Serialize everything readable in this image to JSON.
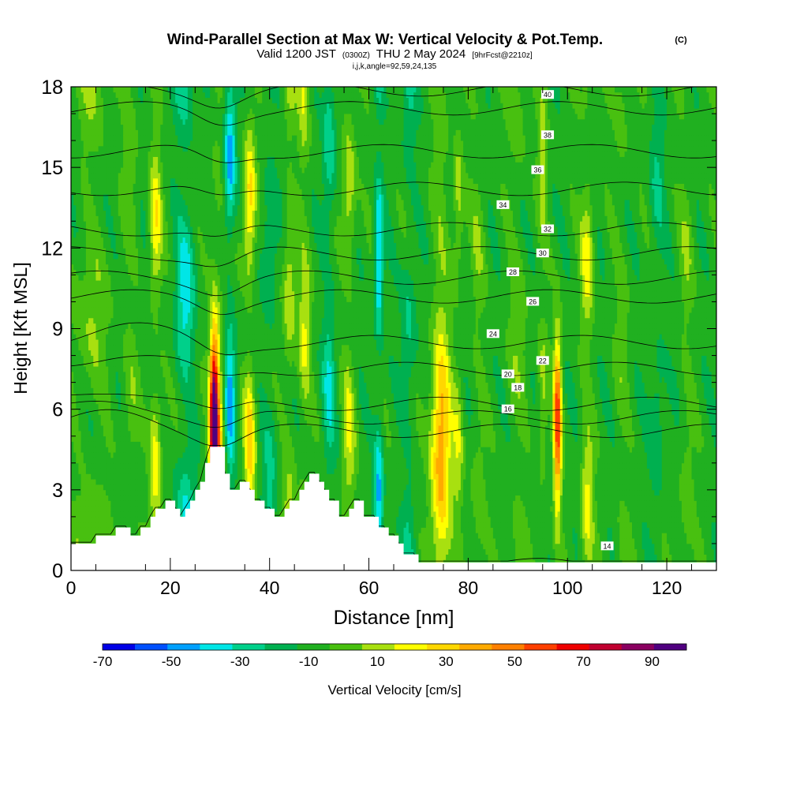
{
  "chart_data": {
    "type": "heatmap",
    "title": "Wind-Parallel Section at Max W: Vertical Velocity & Pot.Temp.",
    "title_mark": "(C)",
    "subtitle_prefix": "Valid 1200 JST",
    "subtitle_utc": "(0300Z)",
    "subtitle_date": "THU 2 May 2024",
    "subtitle_fcst": "[9hrFcst@2210z]",
    "subtitle2": "i,j,k,angle=92,59,24,135",
    "xlabel": "Distance [nm]",
    "ylabel": "Height [Kft MSL]",
    "xlim": [
      0,
      130
    ],
    "ylim": [
      0,
      18
    ],
    "x_ticks": [
      "0",
      "20",
      "40",
      "60",
      "80",
      "100",
      "120"
    ],
    "y_ticks": [
      "0",
      "3",
      "6",
      "9",
      "12",
      "15",
      "18"
    ],
    "colorbar": {
      "label": "Vertical Velocity [cm/s]",
      "tick_labels": [
        "-70",
        "-50",
        "-30",
        "-10",
        "10",
        "30",
        "50",
        "70",
        "90"
      ],
      "levels": [
        -70,
        -60,
        -50,
        -40,
        -30,
        -20,
        -10,
        0,
        10,
        20,
        30,
        40,
        50,
        60,
        70,
        80,
        90,
        100
      ],
      "colors": [
        "#0000e6",
        "#0050ff",
        "#00a0ff",
        "#00e6e6",
        "#00d08a",
        "#00b050",
        "#20b020",
        "#48c010",
        "#a8e010",
        "#ffff00",
        "#ffd700",
        "#ffaa00",
        "#ff8000",
        "#ff4000",
        "#ee0000",
        "#c00030",
        "#8a0060",
        "#500080"
      ]
    },
    "velocity_columns": [
      {
        "x": 4,
        "w": 4,
        "v": 15
      },
      {
        "x": 12,
        "w": 1.5,
        "v": 12
      },
      {
        "x": 17,
        "w": 1.2,
        "v": 32
      },
      {
        "x": 23,
        "w": 2.0,
        "v": -30
      },
      {
        "x": 28.8,
        "w": 0.8,
        "v": 95
      },
      {
        "x": 29.5,
        "w": 1.5,
        "v": 45
      },
      {
        "x": 32,
        "w": 1.2,
        "v": -42
      },
      {
        "x": 36,
        "w": 1.2,
        "v": 40
      },
      {
        "x": 40,
        "w": 1.5,
        "v": -18
      },
      {
        "x": 44,
        "w": 1.3,
        "v": 25
      },
      {
        "x": 47,
        "w": 1.2,
        "v": 25
      },
      {
        "x": 52,
        "w": 1.3,
        "v": -25
      },
      {
        "x": 56,
        "w": 1.3,
        "v": 25
      },
      {
        "x": 62,
        "w": 0.9,
        "v": -40
      },
      {
        "x": 68,
        "w": 1.5,
        "v": -18
      },
      {
        "x": 74.5,
        "w": 2.0,
        "v": 52
      },
      {
        "x": 78,
        "w": 1.0,
        "v": 20
      },
      {
        "x": 82,
        "w": 1.5,
        "v": 12
      },
      {
        "x": 90,
        "w": 2.0,
        "v": 12
      },
      {
        "x": 95,
        "w": 1.0,
        "v": 18
      },
      {
        "x": 98,
        "w": 0.8,
        "v": 72
      },
      {
        "x": 104,
        "w": 1.3,
        "v": 28
      },
      {
        "x": 111,
        "w": 1.5,
        "v": 10
      },
      {
        "x": 118,
        "w": 1.5,
        "v": -15
      },
      {
        "x": 124,
        "w": 1.5,
        "v": 12
      }
    ],
    "terrain": [
      [
        0,
        1
      ],
      [
        5,
        1
      ],
      [
        5,
        1.3
      ],
      [
        9,
        1.3
      ],
      [
        9,
        1.6
      ],
      [
        12,
        1.6
      ],
      [
        12,
        1.3
      ],
      [
        14,
        1.3
      ],
      [
        14,
        1.6
      ],
      [
        16,
        1.6
      ],
      [
        16,
        2.0
      ],
      [
        17,
        2.0
      ],
      [
        17,
        2.3
      ],
      [
        19,
        2.3
      ],
      [
        19,
        2.6
      ],
      [
        21,
        2.6
      ],
      [
        21,
        2.3
      ],
      [
        22,
        2.3
      ],
      [
        22,
        2.0
      ],
      [
        23,
        2.0
      ],
      [
        23,
        2.3
      ],
      [
        24,
        2.3
      ],
      [
        24,
        2.6
      ],
      [
        25,
        2.6
      ],
      [
        25,
        3.0
      ],
      [
        26,
        3.0
      ],
      [
        26,
        3.3
      ],
      [
        27,
        3.3
      ],
      [
        27,
        4.0
      ],
      [
        28,
        4.0
      ],
      [
        28,
        4.6
      ],
      [
        31,
        4.6
      ],
      [
        31,
        3.6
      ],
      [
        32,
        3.6
      ],
      [
        32,
        3.0
      ],
      [
        34,
        3.0
      ],
      [
        34,
        3.3
      ],
      [
        36,
        3.3
      ],
      [
        36,
        3.0
      ],
      [
        37,
        3.0
      ],
      [
        37,
        2.6
      ],
      [
        39,
        2.6
      ],
      [
        39,
        2.3
      ],
      [
        41,
        2.3
      ],
      [
        41,
        2.0
      ],
      [
        43,
        2.0
      ],
      [
        43,
        2.3
      ],
      [
        44,
        2.3
      ],
      [
        44,
        2.6
      ],
      [
        46,
        2.6
      ],
      [
        46,
        3.0
      ],
      [
        47,
        3.0
      ],
      [
        47,
        3.3
      ],
      [
        48,
        3.3
      ],
      [
        48,
        3.6
      ],
      [
        50,
        3.6
      ],
      [
        50,
        3.3
      ],
      [
        51,
        3.3
      ],
      [
        51,
        3.0
      ],
      [
        52,
        3.0
      ],
      [
        52,
        2.6
      ],
      [
        54,
        2.6
      ],
      [
        54,
        2.0
      ],
      [
        56,
        2.0
      ],
      [
        56,
        2.3
      ],
      [
        57,
        2.3
      ],
      [
        57,
        2.6
      ],
      [
        59,
        2.6
      ],
      [
        59,
        2.0
      ],
      [
        62,
        2.0
      ],
      [
        62,
        1.6
      ],
      [
        64,
        1.6
      ],
      [
        64,
        1.3
      ],
      [
        66,
        1.3
      ],
      [
        66,
        1.0
      ],
      [
        67,
        1.0
      ],
      [
        67,
        0.6
      ],
      [
        70,
        0.6
      ],
      [
        70,
        0.3
      ],
      [
        130,
        0.3
      ]
    ],
    "theta_contours": [
      {
        "label": "14",
        "base": 0.5,
        "lx": 108,
        "ly": 0.9
      },
      {
        "label": "16",
        "base": 5.5,
        "lx": 88,
        "ly": 6.0
      },
      {
        "label": "18",
        "base": 6.0,
        "lx": 90,
        "ly": 6.8
      },
      {
        "label": "20",
        "base": 6.5,
        "lx": 88,
        "ly": 7.3
      },
      {
        "label": "22",
        "base": 7.8,
        "lx": 95,
        "ly": 7.8
      },
      {
        "label": "24",
        "base": 8.8,
        "lx": 85,
        "ly": 8.8
      },
      {
        "label": "26",
        "base": 10.2,
        "lx": 93,
        "ly": 10.0
      },
      {
        "label": "28",
        "base": 10.9,
        "lx": 89,
        "ly": 11.1
      },
      {
        "label": "30",
        "base": 11.8,
        "lx": 95,
        "ly": 11.8
      },
      {
        "label": "32",
        "base": 12.7,
        "lx": 96,
        "ly": 12.7
      },
      {
        "label": "34",
        "base": 14.2,
        "lx": 87,
        "ly": 13.6
      },
      {
        "label": "36",
        "base": 15.6,
        "lx": 94,
        "ly": 14.9
      },
      {
        "label": "38",
        "base": 17.2,
        "lx": 96,
        "ly": 16.2
      },
      {
        "label": "40",
        "base": 17.9,
        "lx": 96,
        "ly": 17.7
      }
    ]
  }
}
